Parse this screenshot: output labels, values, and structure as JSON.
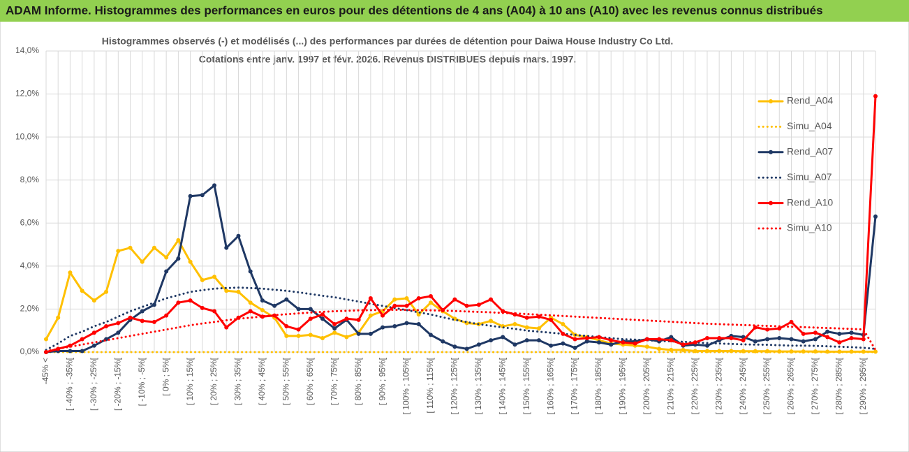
{
  "header": {
    "title": "ADAM Informe. Histogrammes des performances en euros pour des détentions de 4 ans (A04) à 10 ans (A10) avec les revenus connus distribués"
  },
  "chart_data": {
    "type": "line",
    "title": "Histogrammes observés (-) et modélisés (...) des performances par durées de détention pour Daiwa House Industry Co Ltd.",
    "subtitle": "Cotations entre janv. 1997 et févr. 2026. Revenus DISTRIBUES depuis mars. 1997.",
    "categories": [
      "-45% <",
      null,
      "[ -40% ; -35%[",
      null,
      "[ -30% ; -25%[",
      null,
      "[ -20% ; -15%[",
      null,
      "[ -10% ; -5%[",
      null,
      "[ 0% ; 5%[",
      null,
      "[ 10% ; 15%[",
      null,
      "[ 20% ; 25%[",
      null,
      "[ 30% ; 35%[",
      null,
      "[ 40% ; 45%[",
      null,
      "[ 50% ; 55%[",
      null,
      "[ 60% ; 65%[",
      null,
      "[ 70% ; 75%[",
      null,
      "[ 80% ; 85%[",
      null,
      "[ 90% ; 95%[",
      null,
      "[ 100% ; 105%[",
      null,
      "[ 110% ; 115%[",
      null,
      "[ 120% ; 125%[",
      null,
      "[ 130% ; 135%[",
      null,
      "[ 140% ; 145%[",
      null,
      "[ 150% ; 155%[",
      null,
      "[ 160% ; 165%[",
      null,
      "[ 170% ; 175%[",
      null,
      "[ 180% ; 185%[",
      null,
      "[ 190% ; 195%[",
      null,
      "[ 200% ; 205%[",
      null,
      "[ 210% ; 215%[",
      null,
      "[ 220% ; 225%[",
      null,
      "[ 230% ; 235%[",
      null,
      "[ 240% ; 245%[",
      null,
      "[ 250% ; 255%[",
      null,
      "[ 260% ; 265%[",
      null,
      "[ 270% ; 275%[",
      null,
      "[ 280% ; 285%[",
      null,
      "[ 290% ; 295%[",
      null
    ],
    "series": [
      {
        "name": "Rend_A04",
        "color": "#ffc000",
        "line_style": "solid",
        "values": [
          0.6,
          1.6,
          3.7,
          2.85,
          2.4,
          2.8,
          4.7,
          4.85,
          4.2,
          4.85,
          4.4,
          5.2,
          4.2,
          3.35,
          3.5,
          2.85,
          2.8,
          2.3,
          1.95,
          1.6,
          0.75,
          0.75,
          0.8,
          0.65,
          0.9,
          0.7,
          0.9,
          1.7,
          1.9,
          2.45,
          2.5,
          1.75,
          2.3,
          1.9,
          1.55,
          1.35,
          1.3,
          1.45,
          1.2,
          1.3,
          1.15,
          1.1,
          1.6,
          1.3,
          0.8,
          0.7,
          0.55,
          0.4,
          0.35,
          0.3,
          0.25,
          0.15,
          0.1,
          0.1,
          0.05,
          0.05,
          0.05,
          0.05,
          0.04,
          0.04,
          0.04,
          0.03,
          0.03,
          0.03,
          0.03,
          0.02,
          0.02,
          0.02,
          0.02,
          0.02
        ]
      },
      {
        "name": "Simu_A04",
        "color": "#ffc000",
        "line_style": "dotted",
        "values": [
          0,
          0,
          0,
          0,
          0,
          0,
          0,
          0,
          0,
          0,
          0,
          0,
          0,
          0,
          0,
          0,
          0,
          0,
          0,
          0,
          0,
          0,
          0,
          0,
          0,
          0,
          0,
          0,
          0,
          0,
          0,
          0,
          0,
          0,
          0,
          0,
          0,
          0,
          0,
          0,
          0,
          0,
          0,
          0,
          0,
          0,
          0,
          0,
          0,
          0,
          0,
          0,
          0,
          0,
          0,
          0,
          0,
          0,
          0,
          0,
          0,
          0,
          0,
          0,
          0,
          0,
          0,
          0,
          0,
          0
        ]
      },
      {
        "name": "Rend_A07",
        "color": "#1f3864",
        "line_style": "solid",
        "values": [
          0,
          0.05,
          0.05,
          0.05,
          0.3,
          0.6,
          0.9,
          1.5,
          1.9,
          2.2,
          3.75,
          4.35,
          7.25,
          7.3,
          7.75,
          4.85,
          5.4,
          3.75,
          2.4,
          2.15,
          2.45,
          2.0,
          2.0,
          1.55,
          1.1,
          1.5,
          0.85,
          0.85,
          1.15,
          1.2,
          1.35,
          1.3,
          0.8,
          0.5,
          0.25,
          0.15,
          0.35,
          0.55,
          0.7,
          0.35,
          0.55,
          0.55,
          0.3,
          0.4,
          0.2,
          0.5,
          0.45,
          0.35,
          0.5,
          0.5,
          0.6,
          0.5,
          0.7,
          0.3,
          0.35,
          0.3,
          0.55,
          0.75,
          0.7,
          0.5,
          0.6,
          0.65,
          0.6,
          0.5,
          0.6,
          0.95,
          0.85,
          0.9,
          0.8,
          6.3
        ]
      },
      {
        "name": "Simu_A07",
        "color": "#1f3864",
        "line_style": "dotted",
        "values": [
          0.1,
          0.4,
          0.75,
          0.95,
          1.2,
          1.4,
          1.65,
          1.9,
          2.1,
          2.3,
          2.5,
          2.65,
          2.8,
          2.88,
          2.95,
          2.98,
          3.0,
          2.98,
          2.95,
          2.9,
          2.85,
          2.78,
          2.7,
          2.62,
          2.55,
          2.45,
          2.35,
          2.25,
          2.15,
          2.05,
          1.95,
          1.85,
          1.75,
          1.62,
          1.5,
          1.4,
          1.3,
          1.22,
          1.15,
          1.08,
          1.0,
          0.95,
          0.9,
          0.85,
          0.8,
          0.75,
          0.7,
          0.65,
          0.6,
          0.58,
          0.55,
          0.52,
          0.5,
          0.48,
          0.45,
          0.42,
          0.4,
          0.38,
          0.36,
          0.35,
          0.34,
          0.32,
          0.3,
          0.3,
          0.29,
          0.27,
          0.25,
          0.23,
          0.2,
          0.15
        ]
      },
      {
        "name": "Rend_A10",
        "color": "#ff0000",
        "line_style": "solid",
        "values": [
          0.0,
          0.15,
          0.3,
          0.6,
          0.9,
          1.2,
          1.35,
          1.6,
          1.45,
          1.4,
          1.7,
          2.3,
          2.4,
          2.05,
          1.9,
          1.15,
          1.6,
          1.9,
          1.65,
          1.7,
          1.2,
          1.05,
          1.55,
          1.75,
          1.3,
          1.55,
          1.5,
          2.5,
          1.7,
          2.15,
          2.15,
          2.5,
          2.6,
          1.95,
          2.45,
          2.15,
          2.2,
          2.45,
          1.9,
          1.75,
          1.6,
          1.65,
          1.5,
          0.85,
          0.6,
          0.65,
          0.7,
          0.55,
          0.45,
          0.4,
          0.6,
          0.6,
          0.55,
          0.35,
          0.45,
          0.65,
          0.65,
          0.65,
          0.55,
          1.15,
          1.05,
          1.1,
          1.4,
          0.85,
          0.9,
          0.7,
          0.45,
          0.65,
          0.6,
          11.9
        ]
      },
      {
        "name": "Simu_A10",
        "color": "#ff0000",
        "line_style": "dotted",
        "values": [
          0.05,
          0.15,
          0.25,
          0.35,
          0.45,
          0.55,
          0.65,
          0.75,
          0.85,
          0.95,
          1.05,
          1.15,
          1.25,
          1.33,
          1.4,
          1.48,
          1.55,
          1.6,
          1.66,
          1.72,
          1.76,
          1.8,
          1.84,
          1.87,
          1.9,
          1.92,
          1.94,
          1.95,
          1.96,
          1.96,
          1.96,
          1.95,
          1.94,
          1.93,
          1.91,
          1.89,
          1.87,
          1.85,
          1.82,
          1.8,
          1.77,
          1.74,
          1.71,
          1.68,
          1.65,
          1.62,
          1.59,
          1.56,
          1.53,
          1.5,
          1.47,
          1.44,
          1.41,
          1.38,
          1.35,
          1.32,
          1.3,
          1.28,
          1.26,
          1.24,
          1.22,
          1.2,
          1.18,
          1.16,
          1.14,
          1.12,
          1.1,
          1.08,
          1.05,
          0.1
        ]
      }
    ],
    "ylim": [
      0,
      14
    ],
    "yticks": [
      {
        "value": 0,
        "label": "0,0%"
      },
      {
        "value": 2,
        "label": "2,0%"
      },
      {
        "value": 4,
        "label": "4,0%"
      },
      {
        "value": 6,
        "label": "6,0%"
      },
      {
        "value": 8,
        "label": "8,0%"
      },
      {
        "value": 10,
        "label": "10,0%"
      },
      {
        "value": 12,
        "label": "12,0%"
      },
      {
        "value": 14,
        "label": "14,0%"
      }
    ],
    "grid": true,
    "legend": "right"
  }
}
